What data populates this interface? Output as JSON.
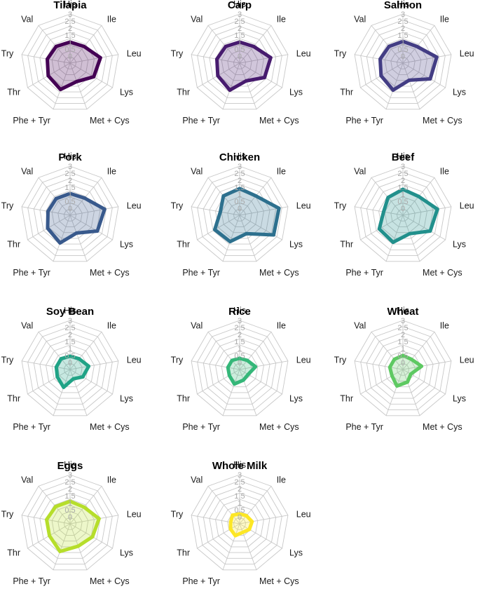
{
  "axes": [
    "His",
    "Ile",
    "Leu",
    "Lys",
    "Met + Cys",
    "Phe + Tyr",
    "Thr",
    "Try",
    "Val"
  ],
  "ticks": [
    "0",
    "0.5",
    "1",
    "1.5",
    "2",
    "2.5",
    "3"
  ],
  "rlim": [
    -0.5,
    3
  ],
  "chart_data": [
    {
      "type": "radar",
      "title": "Tilapia",
      "color": "#440154",
      "values": [
        1.0,
        1.05,
        1.7,
        1.45,
        0.9,
        1.5,
        1.3,
        1.15,
        1.05
      ]
    },
    {
      "type": "radar",
      "title": "Carp",
      "color": "#471b6e",
      "values": [
        1.0,
        1.05,
        1.75,
        1.55,
        0.85,
        1.55,
        1.3,
        1.15,
        1.05
      ]
    },
    {
      "type": "radar",
      "title": "Salmon",
      "color": "#433d84",
      "values": [
        1.05,
        1.05,
        1.95,
        1.75,
        0.8,
        1.55,
        1.3,
        1.15,
        1.05
      ]
    },
    {
      "type": "radar",
      "title": "Pork",
      "color": "#38598c",
      "values": [
        1.05,
        1.1,
        2.0,
        1.75,
        0.85,
        1.6,
        1.35,
        1.1,
        1.05
      ]
    },
    {
      "type": "radar",
      "title": "Chicken",
      "color": "#2d708e",
      "values": [
        1.4,
        1.3,
        2.35,
        2.3,
        0.9,
        1.5,
        1.55,
        0.9,
        1.3
      ]
    },
    {
      "type": "radar",
      "title": "Beef",
      "color": "#21908c",
      "values": [
        1.35,
        1.25,
        2.0,
        1.75,
        0.9,
        1.55,
        1.45,
        0.9,
        1.15
      ]
    },
    {
      "type": "radar",
      "title": "Soy Bean",
      "color": "#20a386",
      "values": [
        0.45,
        0.5,
        0.85,
        0.55,
        0.2,
        0.85,
        0.55,
        0.5,
        0.5
      ]
    },
    {
      "type": "radar",
      "title": "Rice",
      "color": "#35b779",
      "values": [
        0.3,
        0.35,
        0.65,
        0.2,
        0.3,
        0.6,
        0.35,
        0.35,
        0.35
      ]
    },
    {
      "type": "radar",
      "title": "Wheat",
      "color": "#5ec962",
      "values": [
        0.5,
        0.45,
        0.85,
        0.15,
        0.45,
        0.75,
        0.4,
        0.45,
        0.45
      ]
    },
    {
      "type": "radar",
      "title": "Eggs",
      "color": "#b6de2b",
      "values": [
        1.1,
        1.05,
        1.6,
        1.35,
        1.2,
        1.6,
        1.2,
        1.2,
        1.1
      ]
    },
    {
      "type": "radar",
      "title": "Whole Milk",
      "color": "#fde725",
      "values": [
        0.2,
        0.25,
        0.4,
        0.3,
        0.15,
        0.4,
        0.25,
        0.15,
        0.3
      ]
    }
  ]
}
